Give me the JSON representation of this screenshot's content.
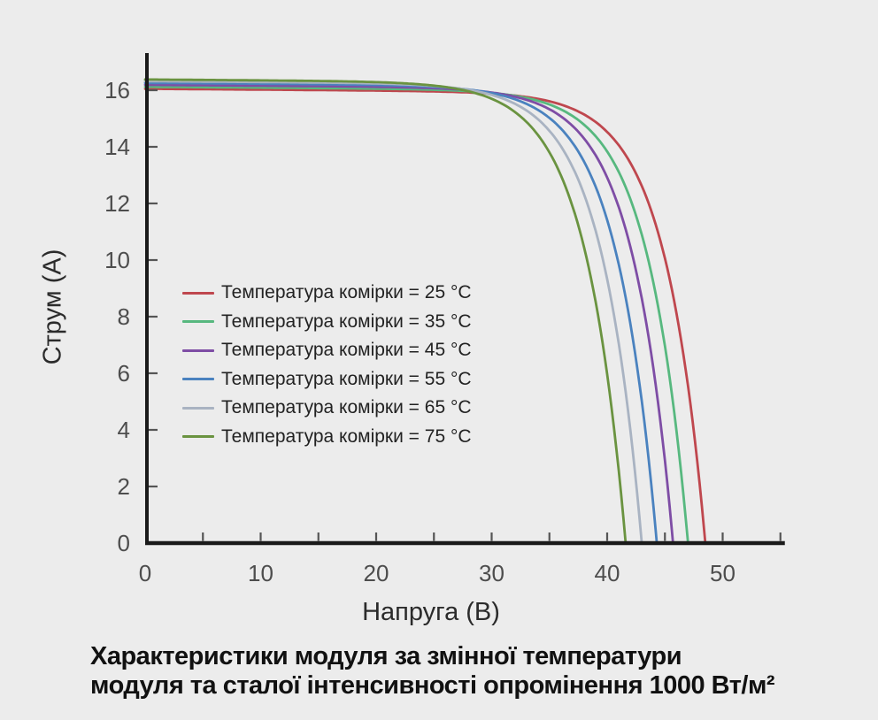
{
  "figure": {
    "background_color": "#ececec"
  },
  "caption": {
    "line1": "Характеристики модуля за змінної температури",
    "line2": "модуля та сталої інтенсивності опромінення 1000 Вт/м²"
  },
  "chart_data": {
    "type": "line",
    "title": "",
    "xlabel": "Напруга (В)",
    "ylabel": "Струм (А)",
    "xlim": [
      0,
      55.2
    ],
    "ylim": [
      0,
      17.25
    ],
    "x_ticks": [
      0,
      10,
      20,
      30,
      40,
      50
    ],
    "x_minor_tick_step": 5,
    "y_ticks": [
      0,
      2,
      4,
      6,
      8,
      10,
      12,
      14,
      16
    ],
    "grid": false,
    "legend_position": "center-left-inside",
    "axis_color": "#1a1a1a",
    "tick_color": "#555555",
    "tick_label_color": "#4d4d4d",
    "model": {
      "formula": "I(V) = (isc - k*V) * (1 - exp((V - voc)/vth))",
      "vth": 3.5,
      "k": 0.003
    },
    "series": [
      {
        "name": "Температура комірки = 25 °C",
        "color": "#bf474e",
        "isc": 16.05,
        "voc": 48.5,
        "points": [
          [
            0,
            16.1
          ],
          [
            10,
            16.0
          ],
          [
            20,
            16.0
          ],
          [
            30,
            15.9
          ],
          [
            35,
            15.6
          ],
          [
            38,
            15.1
          ],
          [
            40,
            14.5
          ],
          [
            42,
            13.4
          ],
          [
            44,
            11.5
          ],
          [
            45,
            10.1
          ],
          [
            46,
            8.1
          ],
          [
            47,
            5.6
          ],
          [
            48,
            2.1
          ],
          [
            48.5,
            0
          ]
        ]
      },
      {
        "name": "Температура комірки = 35 °C",
        "color": "#57b87f",
        "isc": 16.12,
        "voc": 47.0,
        "points": [
          [
            0,
            16.1
          ],
          [
            10,
            16.1
          ],
          [
            20,
            16.1
          ],
          [
            30,
            15.9
          ],
          [
            34,
            15.6
          ],
          [
            38,
            14.8
          ],
          [
            40,
            13.8
          ],
          [
            42,
            12.2
          ],
          [
            44,
            9.2
          ],
          [
            45,
            7.0
          ],
          [
            46,
            4.0
          ],
          [
            47,
            0
          ]
        ]
      },
      {
        "name": "Температура комірки = 45 °C",
        "color": "#7e4da5",
        "isc": 16.19,
        "voc": 45.7,
        "points": [
          [
            0,
            16.2
          ],
          [
            10,
            16.2
          ],
          [
            20,
            16.1
          ],
          [
            28,
            16.0
          ],
          [
            30,
            15.9
          ],
          [
            33,
            15.7
          ],
          [
            36,
            15.1
          ],
          [
            39,
            13.7
          ],
          [
            41,
            11.9
          ],
          [
            43,
            8.6
          ],
          [
            44,
            6.2
          ],
          [
            45,
            2.9
          ],
          [
            45.7,
            0
          ]
        ]
      },
      {
        "name": "Температура комірки = 55 °C",
        "color": "#4a82bf",
        "isc": 16.26,
        "voc": 44.3,
        "points": [
          [
            0,
            16.3
          ],
          [
            10,
            16.2
          ],
          [
            20,
            16.2
          ],
          [
            27,
            16.1
          ],
          [
            30,
            15.9
          ],
          [
            33,
            15.5
          ],
          [
            36,
            14.6
          ],
          [
            38,
            13.5
          ],
          [
            40,
            11.4
          ],
          [
            42,
            7.8
          ],
          [
            43,
            5.0
          ],
          [
            44,
            1.3
          ],
          [
            44.3,
            0
          ]
        ]
      },
      {
        "name": "Температура комірки = 65 °C",
        "color": "#a9b3c2",
        "isc": 16.32,
        "voc": 43.0,
        "points": [
          [
            0,
            16.3
          ],
          [
            10,
            16.3
          ],
          [
            20,
            16.3
          ],
          [
            26,
            16.1
          ],
          [
            29,
            15.9
          ],
          [
            32,
            15.5
          ],
          [
            35,
            14.6
          ],
          [
            37,
            13.3
          ],
          [
            39,
            11.0
          ],
          [
            41,
            7.1
          ],
          [
            42,
            4.0
          ],
          [
            43,
            0
          ]
        ]
      },
      {
        "name": "Температура комірки = 75 °C",
        "color": "#6a9340",
        "isc": 16.38,
        "voc": 41.6,
        "points": [
          [
            0,
            16.4
          ],
          [
            10,
            16.4
          ],
          [
            20,
            16.3
          ],
          [
            25,
            16.2
          ],
          [
            28,
            16.0
          ],
          [
            31,
            15.5
          ],
          [
            34,
            14.4
          ],
          [
            36,
            13.0
          ],
          [
            38,
            10.5
          ],
          [
            40,
            6.0
          ],
          [
            41,
            2.6
          ],
          [
            41.6,
            0
          ]
        ]
      }
    ]
  }
}
